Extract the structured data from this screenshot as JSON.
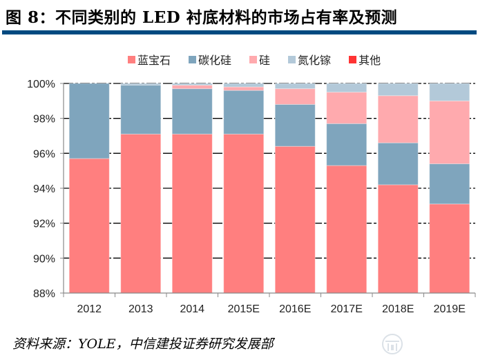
{
  "title": "图 8：不同类别的 LED  衬底材料的市场占有率及预测",
  "source": "资料来源：YOLE，中信建投证券研究发展部",
  "watermark_icon": "institution-logo-icon",
  "chart_data": {
    "type": "bar",
    "stacked": true,
    "title": "",
    "xlabel": "",
    "ylabel": "",
    "ylim": [
      88,
      100
    ],
    "y_ticks": [
      88,
      90,
      92,
      94,
      96,
      98,
      100
    ],
    "y_tick_labels": [
      "88%",
      "90%",
      "92%",
      "94%",
      "96%",
      "98%",
      "100%"
    ],
    "grid": true,
    "legend_position": "top",
    "categories": [
      "2012",
      "2013",
      "2014",
      "2015E",
      "2016E",
      "2017E",
      "2018E",
      "2019E"
    ],
    "series": [
      {
        "name": "蓝宝石",
        "color": "#ff7f7f",
        "values": [
          95.7,
          97.1,
          97.1,
          97.1,
          96.4,
          95.3,
          94.2,
          93.1
        ]
      },
      {
        "name": "碳化硅",
        "color": "#7fa5bd",
        "values": [
          4.3,
          2.8,
          2.6,
          2.5,
          2.4,
          2.4,
          2.4,
          2.3
        ]
      },
      {
        "name": "硅",
        "color": "#ffaaae",
        "values": [
          0.0,
          0.0,
          0.2,
          0.2,
          0.9,
          1.8,
          2.7,
          3.6
        ]
      },
      {
        "name": "氮化镓",
        "color": "#b3c9d9",
        "values": [
          0.0,
          0.1,
          0.1,
          0.2,
          0.3,
          0.5,
          0.7,
          1.0
        ]
      },
      {
        "name": "其他",
        "color": "#ff3333",
        "values": [
          0.0,
          0.0,
          0.0,
          0.0,
          0.0,
          0.0,
          0.0,
          0.0
        ]
      }
    ]
  }
}
